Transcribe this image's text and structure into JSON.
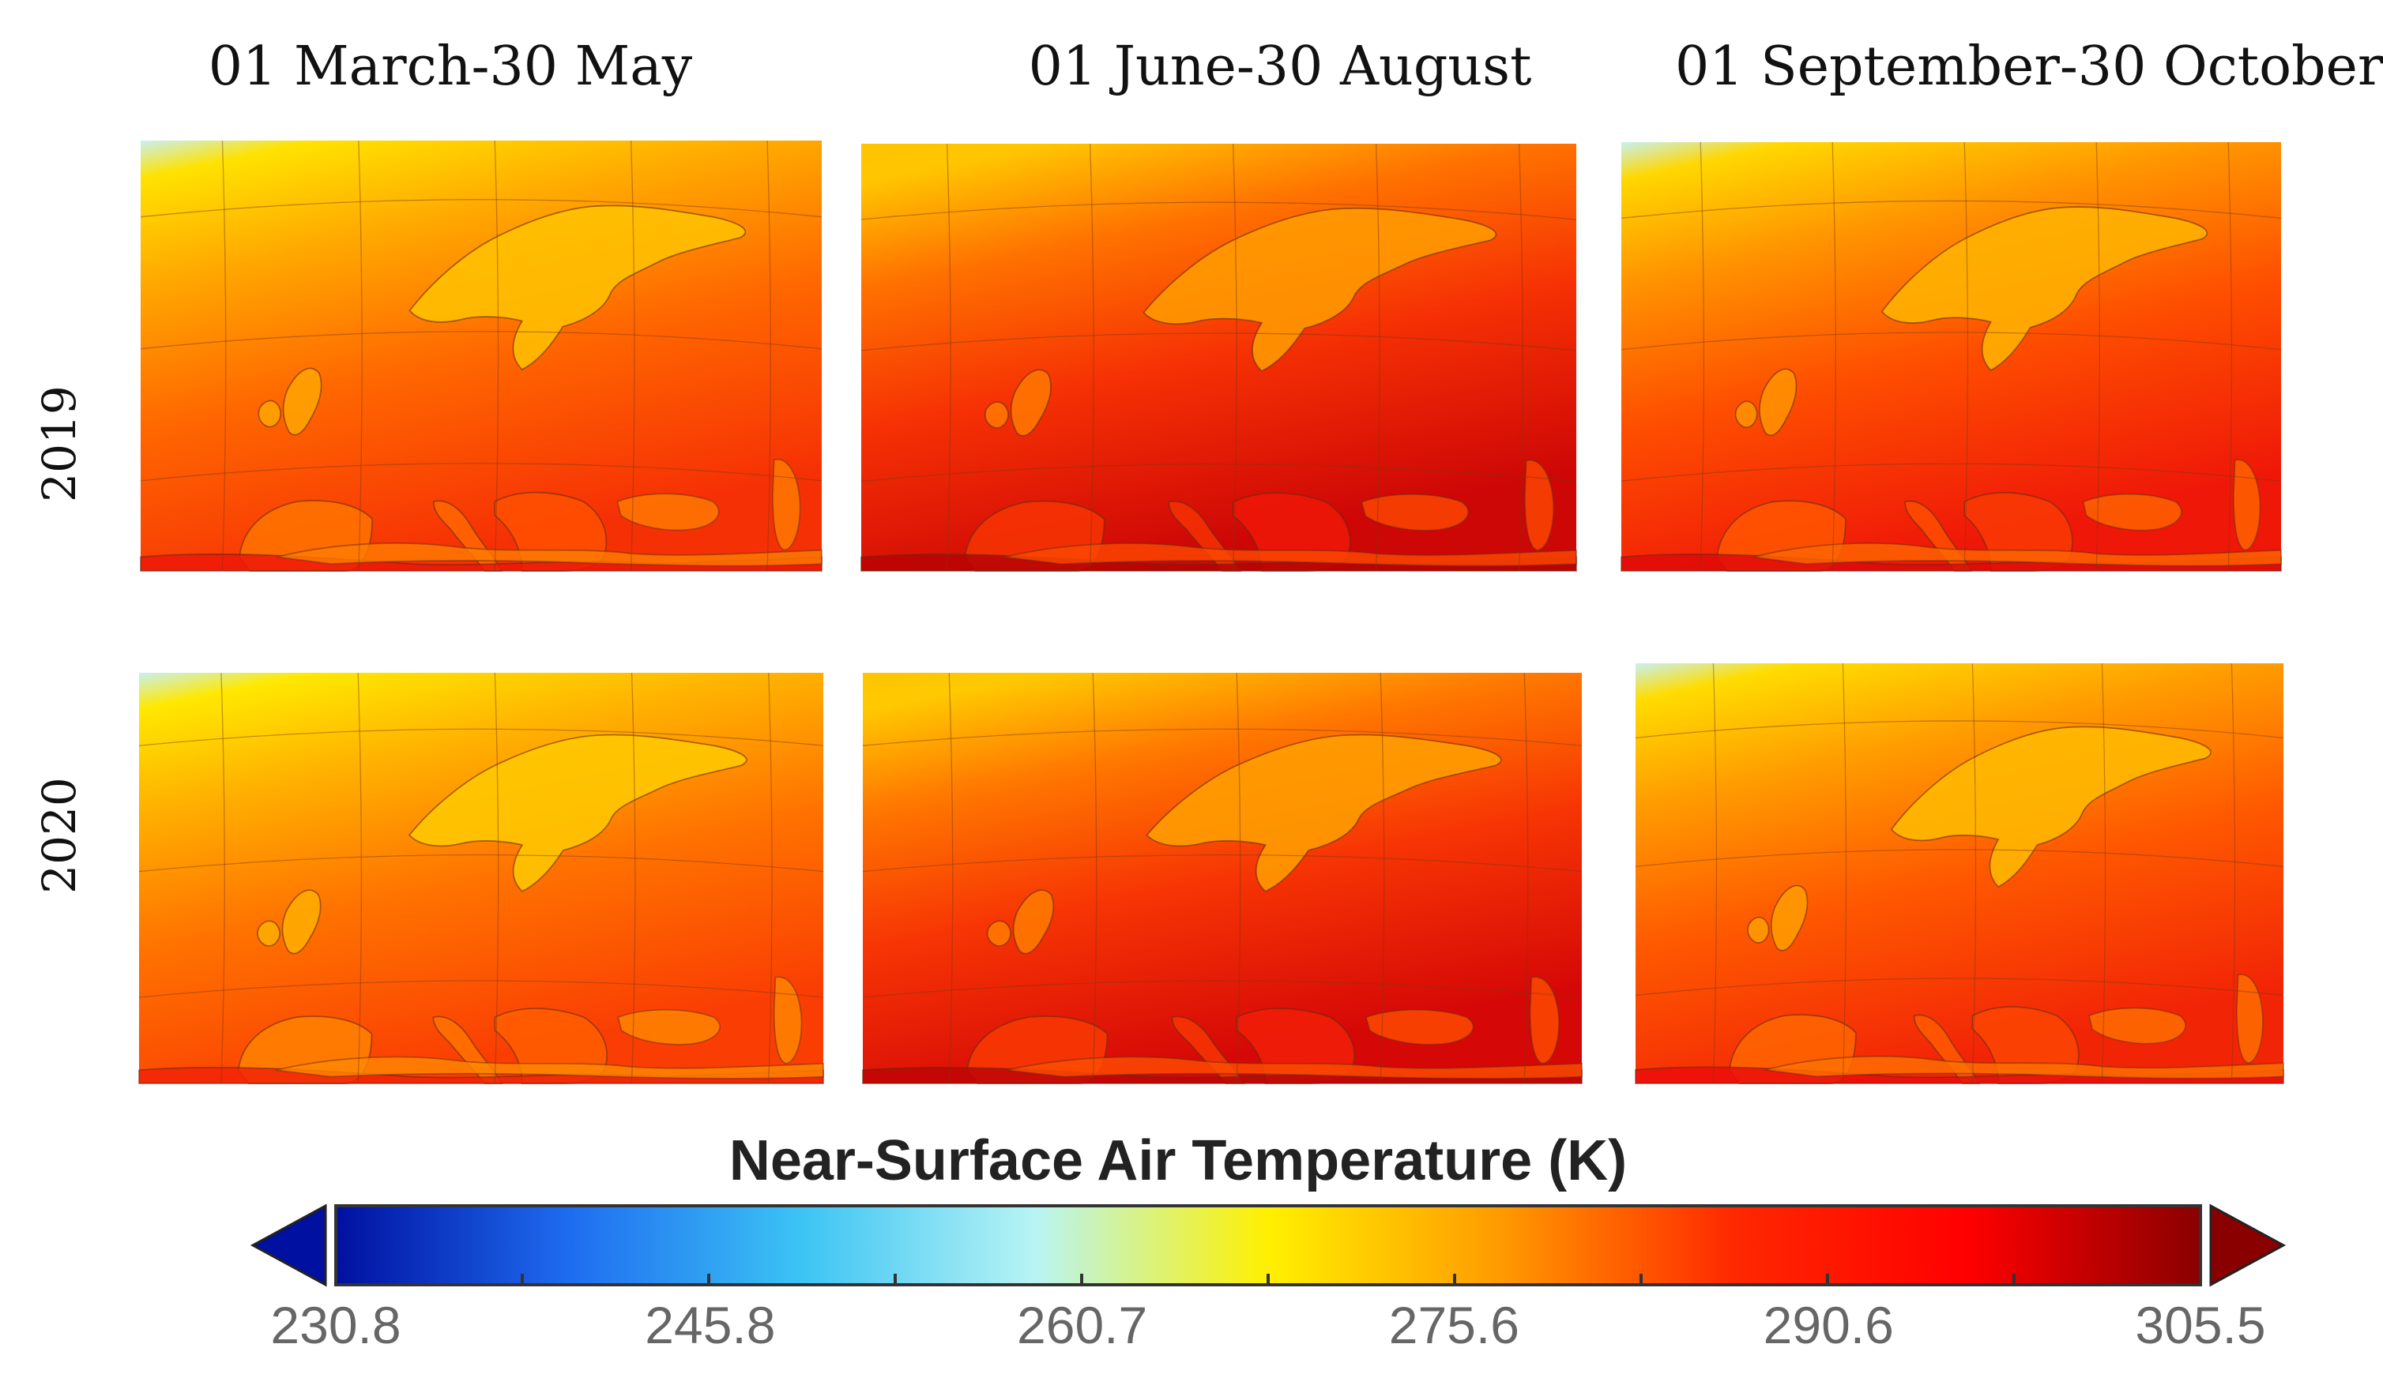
{
  "figure": {
    "column_titles": [
      "01 March-30 May",
      "01 June-30 August",
      "01 September-30 October"
    ],
    "row_labels": [
      "2019",
      "2020"
    ],
    "panels": [
      {
        "year": "2019",
        "period": "01 March-30 May",
        "warmth": 0.25
      },
      {
        "year": "2019",
        "period": "01 June-30 August",
        "warmth": 0.75
      },
      {
        "year": "2019",
        "period": "01 September-30 October",
        "warmth": 0.45
      },
      {
        "year": "2020",
        "period": "01 March-30 May",
        "warmth": 0.15
      },
      {
        "year": "2020",
        "period": "01 June-30 August",
        "warmth": 0.7
      },
      {
        "year": "2020",
        "period": "01 September-30 October",
        "warmth": 0.35
      }
    ]
  },
  "chart_data": {
    "type": "heatmap",
    "title": "Near-Surface Air Temperature (K)",
    "colorbar": {
      "min": 230.8,
      "max": 305.5,
      "tick_values": [
        230.8,
        245.8,
        260.7,
        275.6,
        290.6,
        305.5
      ],
      "tick_labels": [
        "230.8",
        "245.8",
        "260.7",
        "275.6",
        "290.6",
        "305.5"
      ],
      "extend": "both",
      "colors": [
        "#0010a0",
        "#1e6cf0",
        "#3cc4f4",
        "#b8f4f4",
        "#fff000",
        "#ff9a00",
        "#ff2800",
        "#ff0000",
        "#8a0000"
      ]
    }
  }
}
